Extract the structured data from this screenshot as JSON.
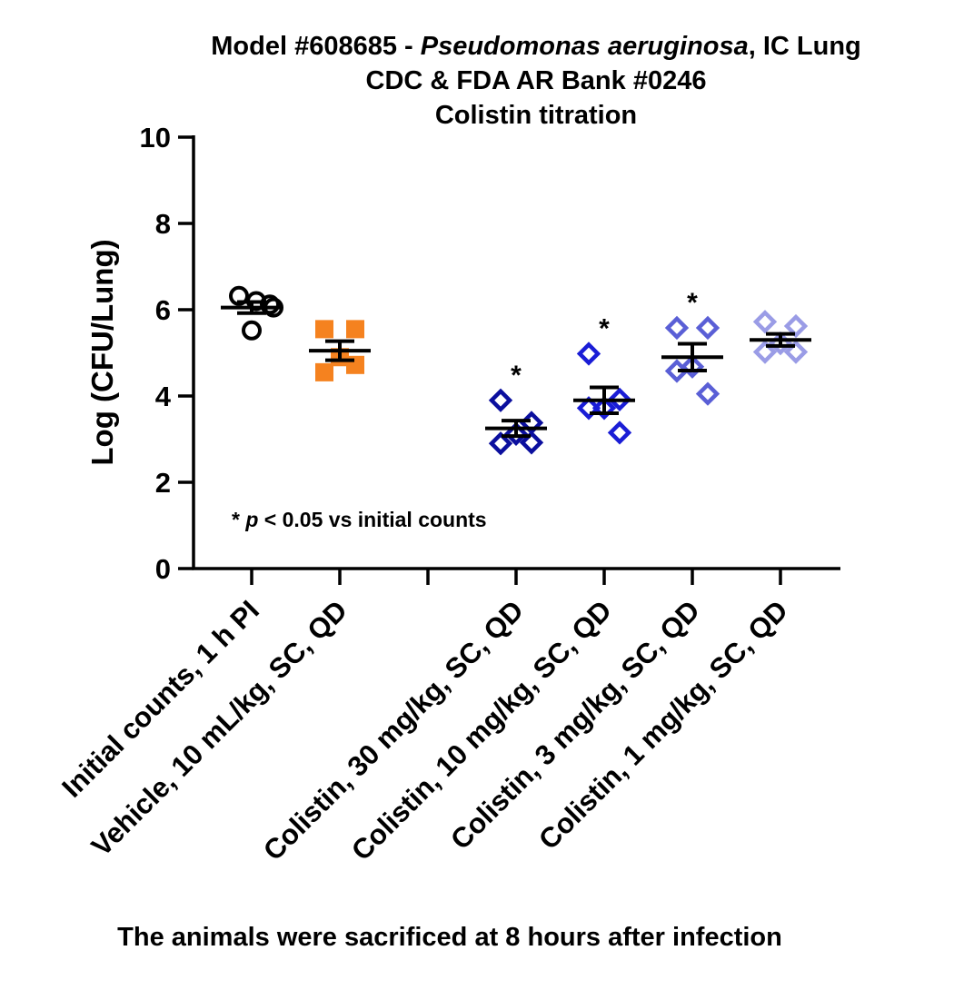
{
  "chart_data": {
    "type": "scatter",
    "title_lines": [
      {
        "prefix": "Model #608685 - ",
        "italic": "Pseudomonas aeruginosa",
        "suffix": ", IC Lung"
      },
      {
        "prefix": "CDC & FDA AR Bank #0246",
        "italic": "",
        "suffix": ""
      },
      {
        "prefix": "Colistin titration",
        "italic": "",
        "suffix": ""
      }
    ],
    "ylabel": "Log (CFU/Lung)",
    "ylim": [
      0,
      10
    ],
    "yticks": [
      "0",
      "2",
      "4",
      "6",
      "8",
      "10"
    ],
    "grid": false,
    "annotation": {
      "star": "* ",
      "p": "p",
      "rest": " < 0.05 vs initial counts"
    },
    "footer": "The animals were sacrificed at 8 hours after infection",
    "category_slots": 7,
    "groups": [
      {
        "label": "Initial counts, 1 h PI",
        "slot": 0,
        "marker": "circle",
        "color": "#000000",
        "filled": false,
        "values": [
          6.32,
          6.12,
          6.2,
          6.05,
          5.52
        ],
        "mean": 6.05,
        "sem": 0.13,
        "significant": false
      },
      {
        "label": "Vehicle, 10 mL/kg, SC, QD",
        "slot": 1,
        "marker": "square",
        "color": "#f5821f",
        "filled": true,
        "values": [
          5.55,
          5.55,
          4.9,
          4.55,
          4.72
        ],
        "mean": 5.05,
        "sem": 0.22,
        "significant": false
      },
      {
        "label": "Colistin, 30 mg/kg, SC, QD",
        "slot": 3,
        "marker": "diamond",
        "color": "#0b0f9e",
        "filled": false,
        "values": [
          3.9,
          3.38,
          3.12,
          2.9,
          2.92
        ],
        "mean": 3.25,
        "sem": 0.18,
        "significant": true
      },
      {
        "label": "Colistin, 10 mg/kg, SC, QD",
        "slot": 4,
        "marker": "diamond",
        "color": "#1a1dd6",
        "filled": false,
        "values": [
          4.98,
          3.92,
          3.72,
          3.72,
          3.15
        ],
        "mean": 3.9,
        "sem": 0.3,
        "significant": true
      },
      {
        "label": "Colistin, 3 mg/kg, SC, QD",
        "slot": 5,
        "marker": "diamond",
        "color": "#5a5fd6",
        "filled": false,
        "values": [
          5.58,
          5.58,
          4.68,
          4.58,
          4.05
        ],
        "mean": 4.9,
        "sem": 0.31,
        "significant": true
      },
      {
        "label": "Colistin, 1 mg/kg, SC, QD",
        "slot": 6,
        "marker": "diamond",
        "color": "#9a9ce6",
        "filled": false,
        "values": [
          5.72,
          5.62,
          5.22,
          5.02,
          5.02
        ],
        "mean": 5.3,
        "sem": 0.14,
        "significant": false
      }
    ],
    "significance_marker": "*"
  }
}
